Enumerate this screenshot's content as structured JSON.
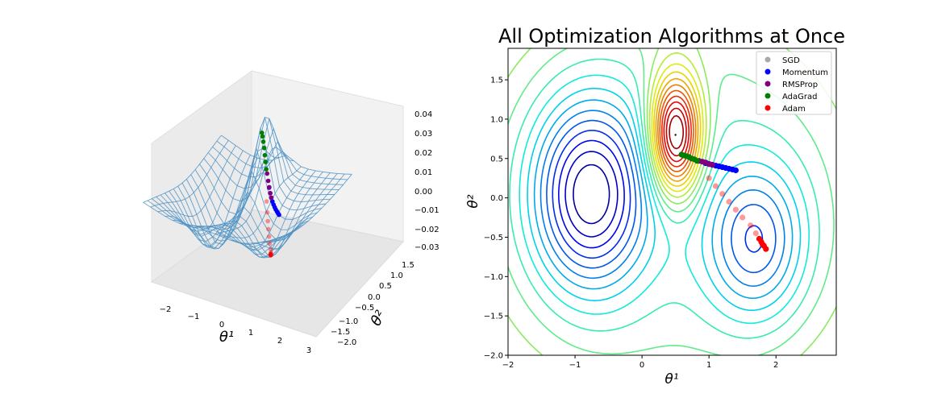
{
  "chart_data": [
    {
      "type": "surface-3d",
      "xlabel": "θ¹",
      "ylabel": "θ²",
      "x_ticks": [
        "−2",
        "−1",
        "0",
        "1",
        "2",
        "3"
      ],
      "y_ticks": [
        "−2.0",
        "−1.5",
        "−1.0",
        "−0.5",
        "0.0",
        "0.5",
        "1.0",
        "1.5"
      ],
      "z_ticks": [
        "−0.03",
        "−0.02",
        "−0.01",
        "0.00",
        "0.01",
        "0.02",
        "0.03",
        "0.04"
      ],
      "xlim": [
        -2,
        3
      ],
      "ylim": [
        -2,
        1.9
      ],
      "zlim": [
        -0.035,
        0.04
      ],
      "surface_color": "#4f93c6",
      "grid": true
    },
    {
      "type": "contour",
      "title": "All Optimization Algorithms at Once",
      "xlabel": "θ¹",
      "ylabel": "θ²",
      "x_ticks": [
        -2,
        -1,
        0,
        1,
        2
      ],
      "y_ticks": [
        -2.0,
        -1.5,
        -1.0,
        -0.5,
        0.0,
        0.5,
        1.0,
        1.5
      ],
      "xlim": [
        -2,
        2.9
      ],
      "ylim": [
        -2,
        1.9
      ],
      "colormap": "jet",
      "minimum_left": [
        -0.78,
        0.05
      ],
      "minimum_right": [
        1.7,
        -0.55
      ],
      "peak": [
        0.5,
        0.8
      ],
      "legend_position": "upper-right",
      "legend": [
        {
          "name": "SGD",
          "color": "#a9a9a9"
        },
        {
          "name": "Momentum",
          "color": "#0000ff"
        },
        {
          "name": "RMSProp",
          "color": "#800080"
        },
        {
          "name": "AdaGrad",
          "color": "#008000"
        },
        {
          "name": "Adam",
          "color": "#ff0000"
        }
      ],
      "series": [
        {
          "name": "Momentum",
          "color": "#0000ff",
          "points": [
            [
              1.4,
              0.35
            ],
            [
              1.35,
              0.36
            ],
            [
              1.3,
              0.37
            ],
            [
              1.25,
              0.38
            ],
            [
              1.2,
              0.39
            ],
            [
              1.15,
              0.4
            ],
            [
              1.1,
              0.41
            ],
            [
              1.05,
              0.42
            ],
            [
              1.0,
              0.43
            ],
            [
              0.95,
              0.44
            ]
          ]
        },
        {
          "name": "RMSProp",
          "color": "#800080",
          "points": [
            [
              1.05,
              0.42
            ],
            [
              1.0,
              0.43
            ],
            [
              0.95,
              0.45
            ],
            [
              0.9,
              0.46
            ],
            [
              0.85,
              0.47
            ]
          ]
        },
        {
          "name": "AdaGrad",
          "color": "#008000",
          "points": [
            [
              0.82,
              0.47
            ],
            [
              0.78,
              0.49
            ],
            [
              0.74,
              0.5
            ],
            [
              0.7,
              0.52
            ],
            [
              0.66,
              0.53
            ],
            [
              0.62,
              0.54
            ],
            [
              0.59,
              0.55
            ]
          ]
        },
        {
          "name": "Adam",
          "color": "#ff0000",
          "points": [
            [
              1.85,
              -0.65
            ],
            [
              1.82,
              -0.61
            ],
            [
              1.8,
              -0.59
            ],
            [
              1.78,
              -0.56
            ],
            [
              1.75,
              -0.52
            ],
            [
              1.7,
              -0.45
            ],
            [
              1.62,
              -0.35
            ],
            [
              1.5,
              -0.25
            ],
            [
              1.4,
              -0.15
            ],
            [
              1.3,
              -0.05
            ],
            [
              1.2,
              0.05
            ],
            [
              1.1,
              0.15
            ],
            [
              1.0,
              0.25
            ]
          ]
        },
        {
          "name": "SGD",
          "color": "#a9a9a9",
          "points": []
        }
      ]
    }
  ]
}
